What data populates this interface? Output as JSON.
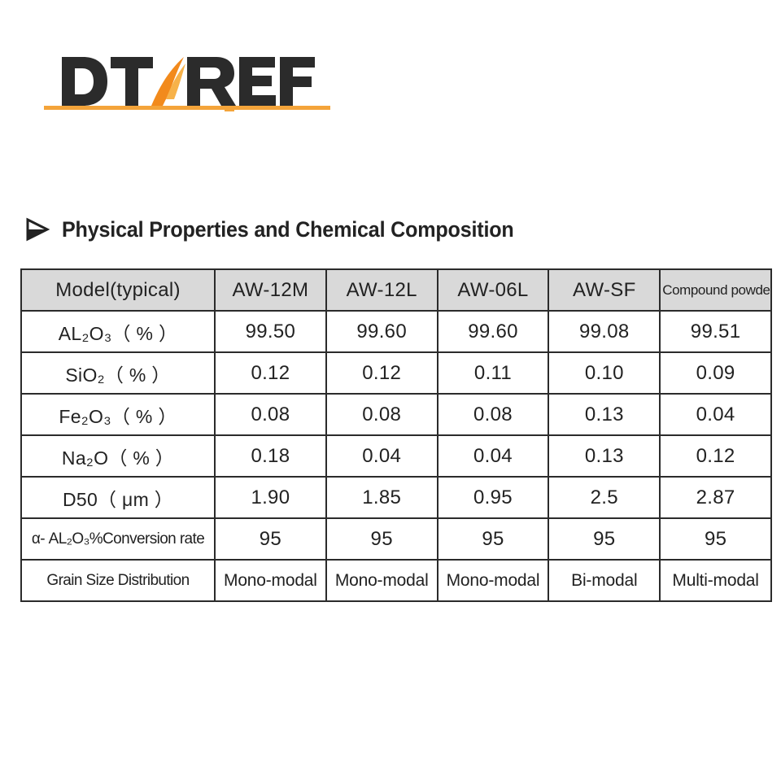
{
  "logo": {
    "text_left": "DT",
    "text_right": "REF",
    "colors": {
      "text": "#2b2b2b",
      "accent": "#f28a1c",
      "underline": "#f4a43a"
    }
  },
  "heading": {
    "icon": "triangle-arrow-icon",
    "title": "Physical Properties and Chemical Composition"
  },
  "table": {
    "header": {
      "label": "Model(typical)",
      "models": [
        "AW-12M",
        "AW-12L",
        "AW-06L",
        "AW-SF",
        "Compound powder"
      ]
    },
    "rows": [
      {
        "label": "AL₂O₃（ % ）",
        "values": [
          "99.50",
          "99.60",
          "99.60",
          "99.08",
          "99.51"
        ]
      },
      {
        "label": "SiO₂（ % ）",
        "values": [
          "0.12",
          "0.12",
          "0.11",
          "0.10",
          "0.09"
        ]
      },
      {
        "label": "Fe₂O₃（ % ）",
        "values": [
          "0.08",
          "0.08",
          "0.08",
          "0.13",
          "0.04"
        ]
      },
      {
        "label": "Na₂O（ % ）",
        "values": [
          "0.18",
          "0.04",
          "0.04",
          "0.13",
          "0.12"
        ]
      },
      {
        "label": "D50（ μm ）",
        "values": [
          "1.90",
          "1.85",
          "0.95",
          "2.5",
          "2.87"
        ]
      },
      {
        "label": "α- AL₂O₃%Conversion rate",
        "values": [
          "95",
          "95",
          "95",
          "95",
          "95"
        ]
      },
      {
        "label": "Grain Size Distribution",
        "values": [
          "Mono-modal",
          "Mono-modal",
          "Mono-modal",
          "Bi-modal",
          "Multi-modal"
        ]
      }
    ],
    "colors": {
      "header_bg": "#d9d9d9",
      "border": "#2b2b2b"
    }
  }
}
